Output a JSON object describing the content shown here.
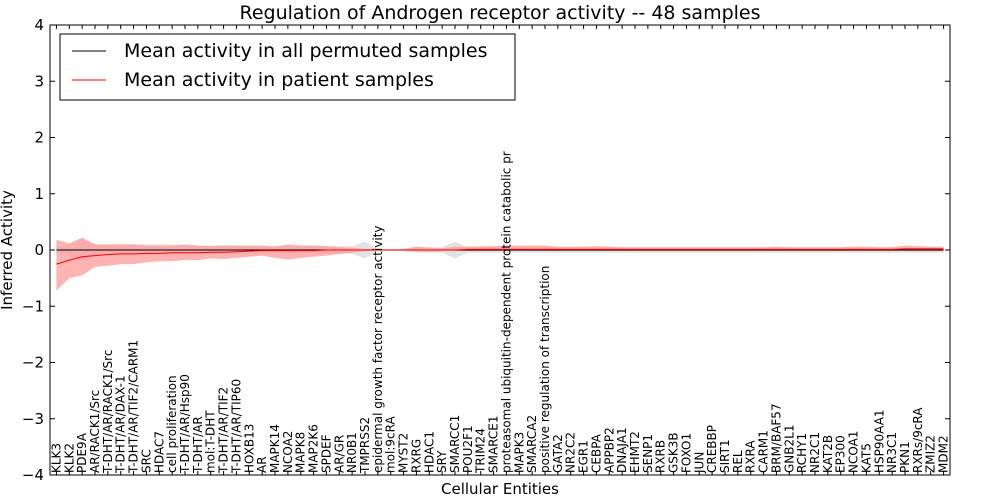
{
  "chart_data": {
    "type": "line",
    "title": "Regulation of Androgen receptor activity -- 48 samples",
    "xlabel": "Cellular Entities",
    "ylabel": "Inferred Activity",
    "ylim": [
      -4,
      4
    ],
    "yticks": [
      -4,
      -3,
      -2,
      -1,
      0,
      1,
      2,
      3,
      4
    ],
    "ytick_labels": [
      "−4",
      "−3",
      "−2",
      "−1",
      "0",
      "1",
      "2",
      "3",
      "4"
    ],
    "grid": false,
    "legend_position": "top-left",
    "categories": [
      "KLK3",
      "KLK2",
      "PDE9A",
      "AR/RACK1/Src",
      "T-DHT/AR/RACK1/Src",
      "T-DHT/AR/DAX-1",
      "T-DHT/AR/TIF2/CARM1",
      "SRC",
      "HDAC7",
      "cell proliferation",
      "T-DHT/AR/Hsp90",
      "T-DHT/AR",
      "mol:T-DHT",
      "T-DHT/AR/TIF2",
      "T-DHT/AR/TIP60",
      "HOXB13",
      "AR",
      "MAPK14",
      "NCOA2",
      "MAPK8",
      "MAP2K6",
      "SPDEF",
      "AR/GR",
      "NR0B1",
      "TMPRSS2",
      "epidermal growth factor receptor activity",
      "mol:9cRA",
      "MYST2",
      "RXRG",
      "HDAC1",
      "SRY",
      "SMARCC1",
      "POU2F1",
      "TRIM24",
      "SMARCE1",
      "proteasomal ubiquitin-dependent protein catabolic pr",
      "MAPK3",
      "SMARCA2",
      "positive regulation of transcription",
      "GATA2",
      "NR2C2",
      "EGR1",
      "CEBPA",
      "APPBP2",
      "DNAJA1",
      "EHMT2",
      "SENP1",
      "RXRB",
      "GSK3B",
      "FOXO1",
      "JUN",
      "CREBBP",
      "SIRT1",
      "REL",
      "RXRA",
      "CARM1",
      "BRM/BAF57",
      "GNB2L1",
      "RCHY1",
      "NR2C1",
      "KAT2B",
      "EP300",
      "NCOA1",
      "KAT5",
      "HSP90AA1",
      "NR3C1",
      "PKN1",
      "RXRs/9cRA",
      "ZMIZ2",
      "MDM2"
    ],
    "series": [
      {
        "name": "Mean activity in all permuted samples",
        "color": "#000000",
        "values": [
          0,
          0,
          0,
          0,
          0,
          0,
          0,
          0,
          0,
          0,
          0,
          0,
          0,
          0,
          0,
          0,
          0,
          0,
          0,
          0,
          0,
          0,
          0,
          0,
          0,
          0,
          0,
          0,
          0,
          0,
          0,
          0,
          0,
          0,
          0,
          0,
          0,
          0,
          0,
          0,
          0,
          0,
          0,
          0,
          0,
          0,
          0,
          0,
          0,
          0,
          0,
          0,
          0,
          0,
          0,
          0,
          0,
          0,
          0,
          0,
          0,
          0,
          0,
          0,
          0,
          0,
          0,
          0,
          0,
          0
        ],
        "lower": [
          -0.05,
          -0.1,
          -0.2,
          -0.1,
          -0.1,
          -0.1,
          -0.1,
          -0.1,
          -0.1,
          -0.1,
          -0.08,
          -0.08,
          -0.08,
          -0.08,
          -0.08,
          -0.07,
          -0.07,
          -0.07,
          -0.07,
          -0.07,
          -0.07,
          -0.07,
          -0.07,
          -0.07,
          -0.15,
          -0.02,
          -0.02,
          -0.02,
          -0.05,
          -0.05,
          -0.05,
          -0.15,
          -0.05,
          -0.05,
          -0.05,
          -0.05,
          -0.05,
          -0.05,
          -0.05,
          -0.05,
          -0.05,
          -0.05,
          -0.05,
          -0.05,
          -0.05,
          -0.05,
          -0.05,
          -0.05,
          -0.05,
          -0.05,
          -0.05,
          -0.05,
          -0.05,
          -0.05,
          -0.05,
          -0.05,
          -0.05,
          -0.05,
          -0.05,
          -0.05,
          -0.05,
          -0.05,
          -0.05,
          -0.05,
          -0.05,
          -0.05,
          -0.05,
          -0.05,
          -0.05,
          -0.05
        ],
        "upper": [
          0.05,
          0.1,
          0.2,
          0.1,
          0.1,
          0.1,
          0.1,
          0.1,
          0.1,
          0.1,
          0.08,
          0.08,
          0.08,
          0.08,
          0.08,
          0.07,
          0.07,
          0.07,
          0.07,
          0.07,
          0.07,
          0.07,
          0.07,
          0.07,
          0.15,
          0.02,
          0.02,
          0.02,
          0.05,
          0.05,
          0.05,
          0.15,
          0.05,
          0.05,
          0.05,
          0.05,
          0.05,
          0.05,
          0.05,
          0.05,
          0.05,
          0.05,
          0.05,
          0.05,
          0.05,
          0.05,
          0.05,
          0.05,
          0.05,
          0.05,
          0.05,
          0.05,
          0.05,
          0.05,
          0.05,
          0.05,
          0.05,
          0.05,
          0.05,
          0.05,
          0.05,
          0.05,
          0.05,
          0.05,
          0.05,
          0.05,
          0.05,
          0.05,
          0.05,
          0.05
        ]
      },
      {
        "name": "Mean activity in patient samples",
        "color": "#ff0000",
        "fill": "#ff9999",
        "values": [
          -0.25,
          -0.18,
          -0.12,
          -0.1,
          -0.08,
          -0.07,
          -0.07,
          -0.06,
          -0.06,
          -0.05,
          -0.05,
          -0.05,
          -0.04,
          -0.04,
          -0.03,
          -0.02,
          -0.01,
          -0.01,
          -0.01,
          -0.01,
          -0.01,
          0,
          0,
          0,
          0,
          0,
          0,
          0,
          0,
          0,
          0,
          0,
          0.01,
          0.01,
          0.01,
          0.01,
          0.01,
          0.01,
          0.01,
          0.01,
          0.01,
          0.01,
          0.01,
          0.01,
          0.01,
          0.01,
          0.01,
          0.01,
          0.01,
          0.01,
          0.01,
          0.01,
          0.01,
          0.01,
          0.01,
          0.01,
          0.01,
          0.01,
          0.01,
          0.01,
          0.01,
          0.01,
          0.01,
          0.01,
          0.01,
          0.01,
          0.02,
          0.02,
          0.02,
          0.02
        ],
        "lower": [
          -0.72,
          -0.5,
          -0.45,
          -0.3,
          -0.28,
          -0.25,
          -0.25,
          -0.22,
          -0.2,
          -0.2,
          -0.18,
          -0.18,
          -0.15,
          -0.16,
          -0.14,
          -0.12,
          -0.1,
          -0.14,
          -0.17,
          -0.14,
          -0.12,
          -0.1,
          -0.07,
          -0.05,
          -0.02,
          -0.01,
          0,
          -0.01,
          -0.02,
          -0.03,
          -0.02,
          -0.02,
          -0.02,
          -0.02,
          -0.02,
          -0.02,
          -0.02,
          -0.02,
          -0.02,
          -0.02,
          -0.02,
          -0.02,
          -0.02,
          -0.02,
          -0.02,
          -0.02,
          -0.02,
          -0.02,
          -0.02,
          -0.02,
          -0.02,
          -0.02,
          -0.02,
          -0.02,
          -0.02,
          -0.02,
          -0.02,
          -0.02,
          -0.02,
          -0.02,
          -0.02,
          -0.02,
          -0.02,
          -0.02,
          -0.02,
          -0.02,
          -0.02,
          -0.02,
          -0.02,
          -0.02
        ],
        "upper": [
          0.18,
          0.12,
          0.22,
          0.1,
          0.1,
          0.1,
          0.1,
          0.08,
          0.08,
          0.08,
          0.1,
          0.08,
          0.07,
          0.08,
          0.08,
          0.08,
          0.08,
          0.06,
          0.1,
          0.08,
          0.08,
          0.07,
          0.05,
          0.04,
          0.02,
          0.01,
          0,
          0.02,
          0.06,
          0.04,
          0.03,
          0.06,
          0.06,
          0.07,
          0.07,
          0.08,
          0.08,
          0.08,
          0.08,
          0.06,
          0.06,
          0.06,
          0.07,
          0.06,
          0.05,
          0.05,
          0.05,
          0.05,
          0.05,
          0.05,
          0.05,
          0.05,
          0.05,
          0.05,
          0.05,
          0.05,
          0.06,
          0.05,
          0.05,
          0.05,
          0.05,
          0.05,
          0.06,
          0.06,
          0.05,
          0.05,
          0.08,
          0.07,
          0.06,
          0.06
        ]
      }
    ]
  }
}
